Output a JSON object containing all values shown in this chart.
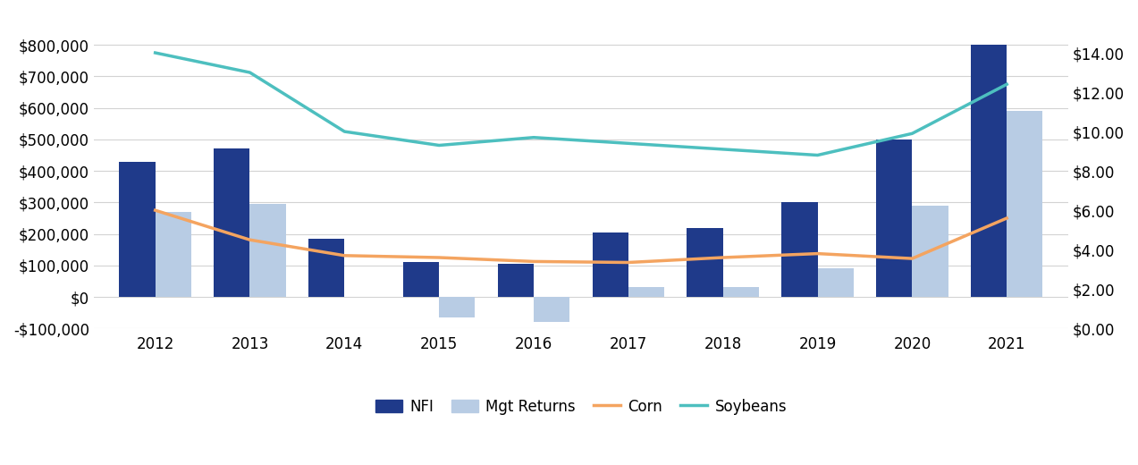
{
  "years": [
    2012,
    2013,
    2014,
    2015,
    2016,
    2017,
    2018,
    2019,
    2020,
    2021
  ],
  "nfi": [
    430000,
    470000,
    185000,
    110000,
    105000,
    205000,
    220000,
    300000,
    500000,
    800000
  ],
  "mgt_returns": [
    270000,
    295000,
    0,
    -65000,
    -80000,
    30000,
    30000,
    90000,
    290000,
    590000
  ],
  "corn": [
    6.0,
    4.5,
    3.7,
    3.6,
    3.4,
    3.35,
    3.6,
    3.8,
    3.55,
    5.6
  ],
  "soybeans": [
    14.0,
    13.0,
    10.0,
    9.3,
    9.7,
    9.4,
    9.1,
    8.8,
    9.9,
    12.4
  ],
  "nfi_color": "#1f3a8a",
  "mgt_color": "#b8cce4",
  "corn_color": "#f4a460",
  "soybeans_color": "#4dbfbf",
  "left_ylim": [
    -100000,
    900000
  ],
  "right_ylim": [
    0,
    16
  ],
  "left_yticks": [
    -100000,
    0,
    100000,
    200000,
    300000,
    400000,
    500000,
    600000,
    700000,
    800000
  ],
  "right_yticks": [
    0.0,
    2.0,
    4.0,
    6.0,
    8.0,
    10.0,
    12.0,
    14.0
  ],
  "legend_labels": [
    "NFI",
    "Mgt Returns",
    "Corn",
    "Soybeans"
  ],
  "bar_width": 0.38
}
